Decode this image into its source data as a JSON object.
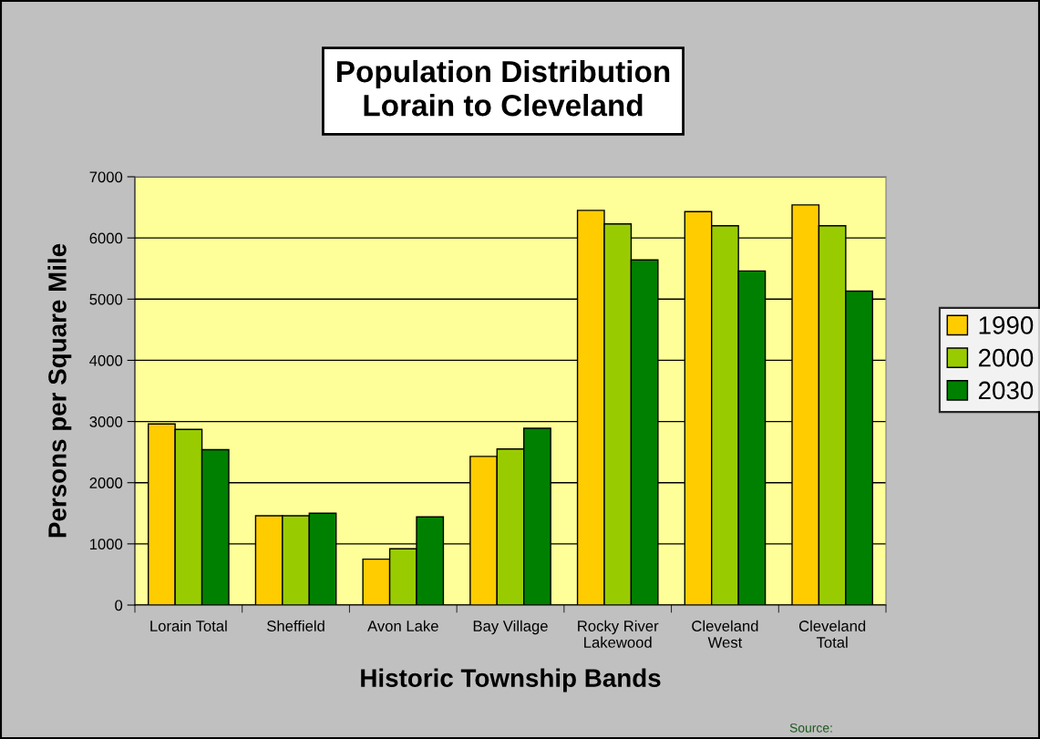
{
  "chart_data": {
    "type": "bar",
    "title": "Population Distribution\nLorain to Cleveland",
    "xlabel": "Historic Township Bands",
    "ylabel": "Persons per Square Mile",
    "categories": [
      "Lorain Total",
      "Sheffield",
      "Avon Lake",
      "Bay Village",
      "Rocky River\nLakewood",
      "Cleveland\nWest",
      "Cleveland\nTotal"
    ],
    "series": [
      {
        "name": "1990",
        "color": "#ffcc00",
        "values": [
          2960,
          1460,
          750,
          2430,
          6450,
          6430,
          6540
        ]
      },
      {
        "name": "2000",
        "color": "#99cc00",
        "values": [
          2870,
          1460,
          920,
          2550,
          6230,
          6200,
          6200
        ]
      },
      {
        "name": "2030",
        "color": "#008000",
        "values": [
          2540,
          1500,
          1440,
          2890,
          5640,
          5460,
          5130
        ]
      }
    ],
    "ylim": [
      0,
      7000
    ],
    "yticks": [
      0,
      1000,
      2000,
      3000,
      4000,
      5000,
      6000,
      7000
    ],
    "grid": "y",
    "legend": "right",
    "annotations": [
      "Source:"
    ]
  }
}
